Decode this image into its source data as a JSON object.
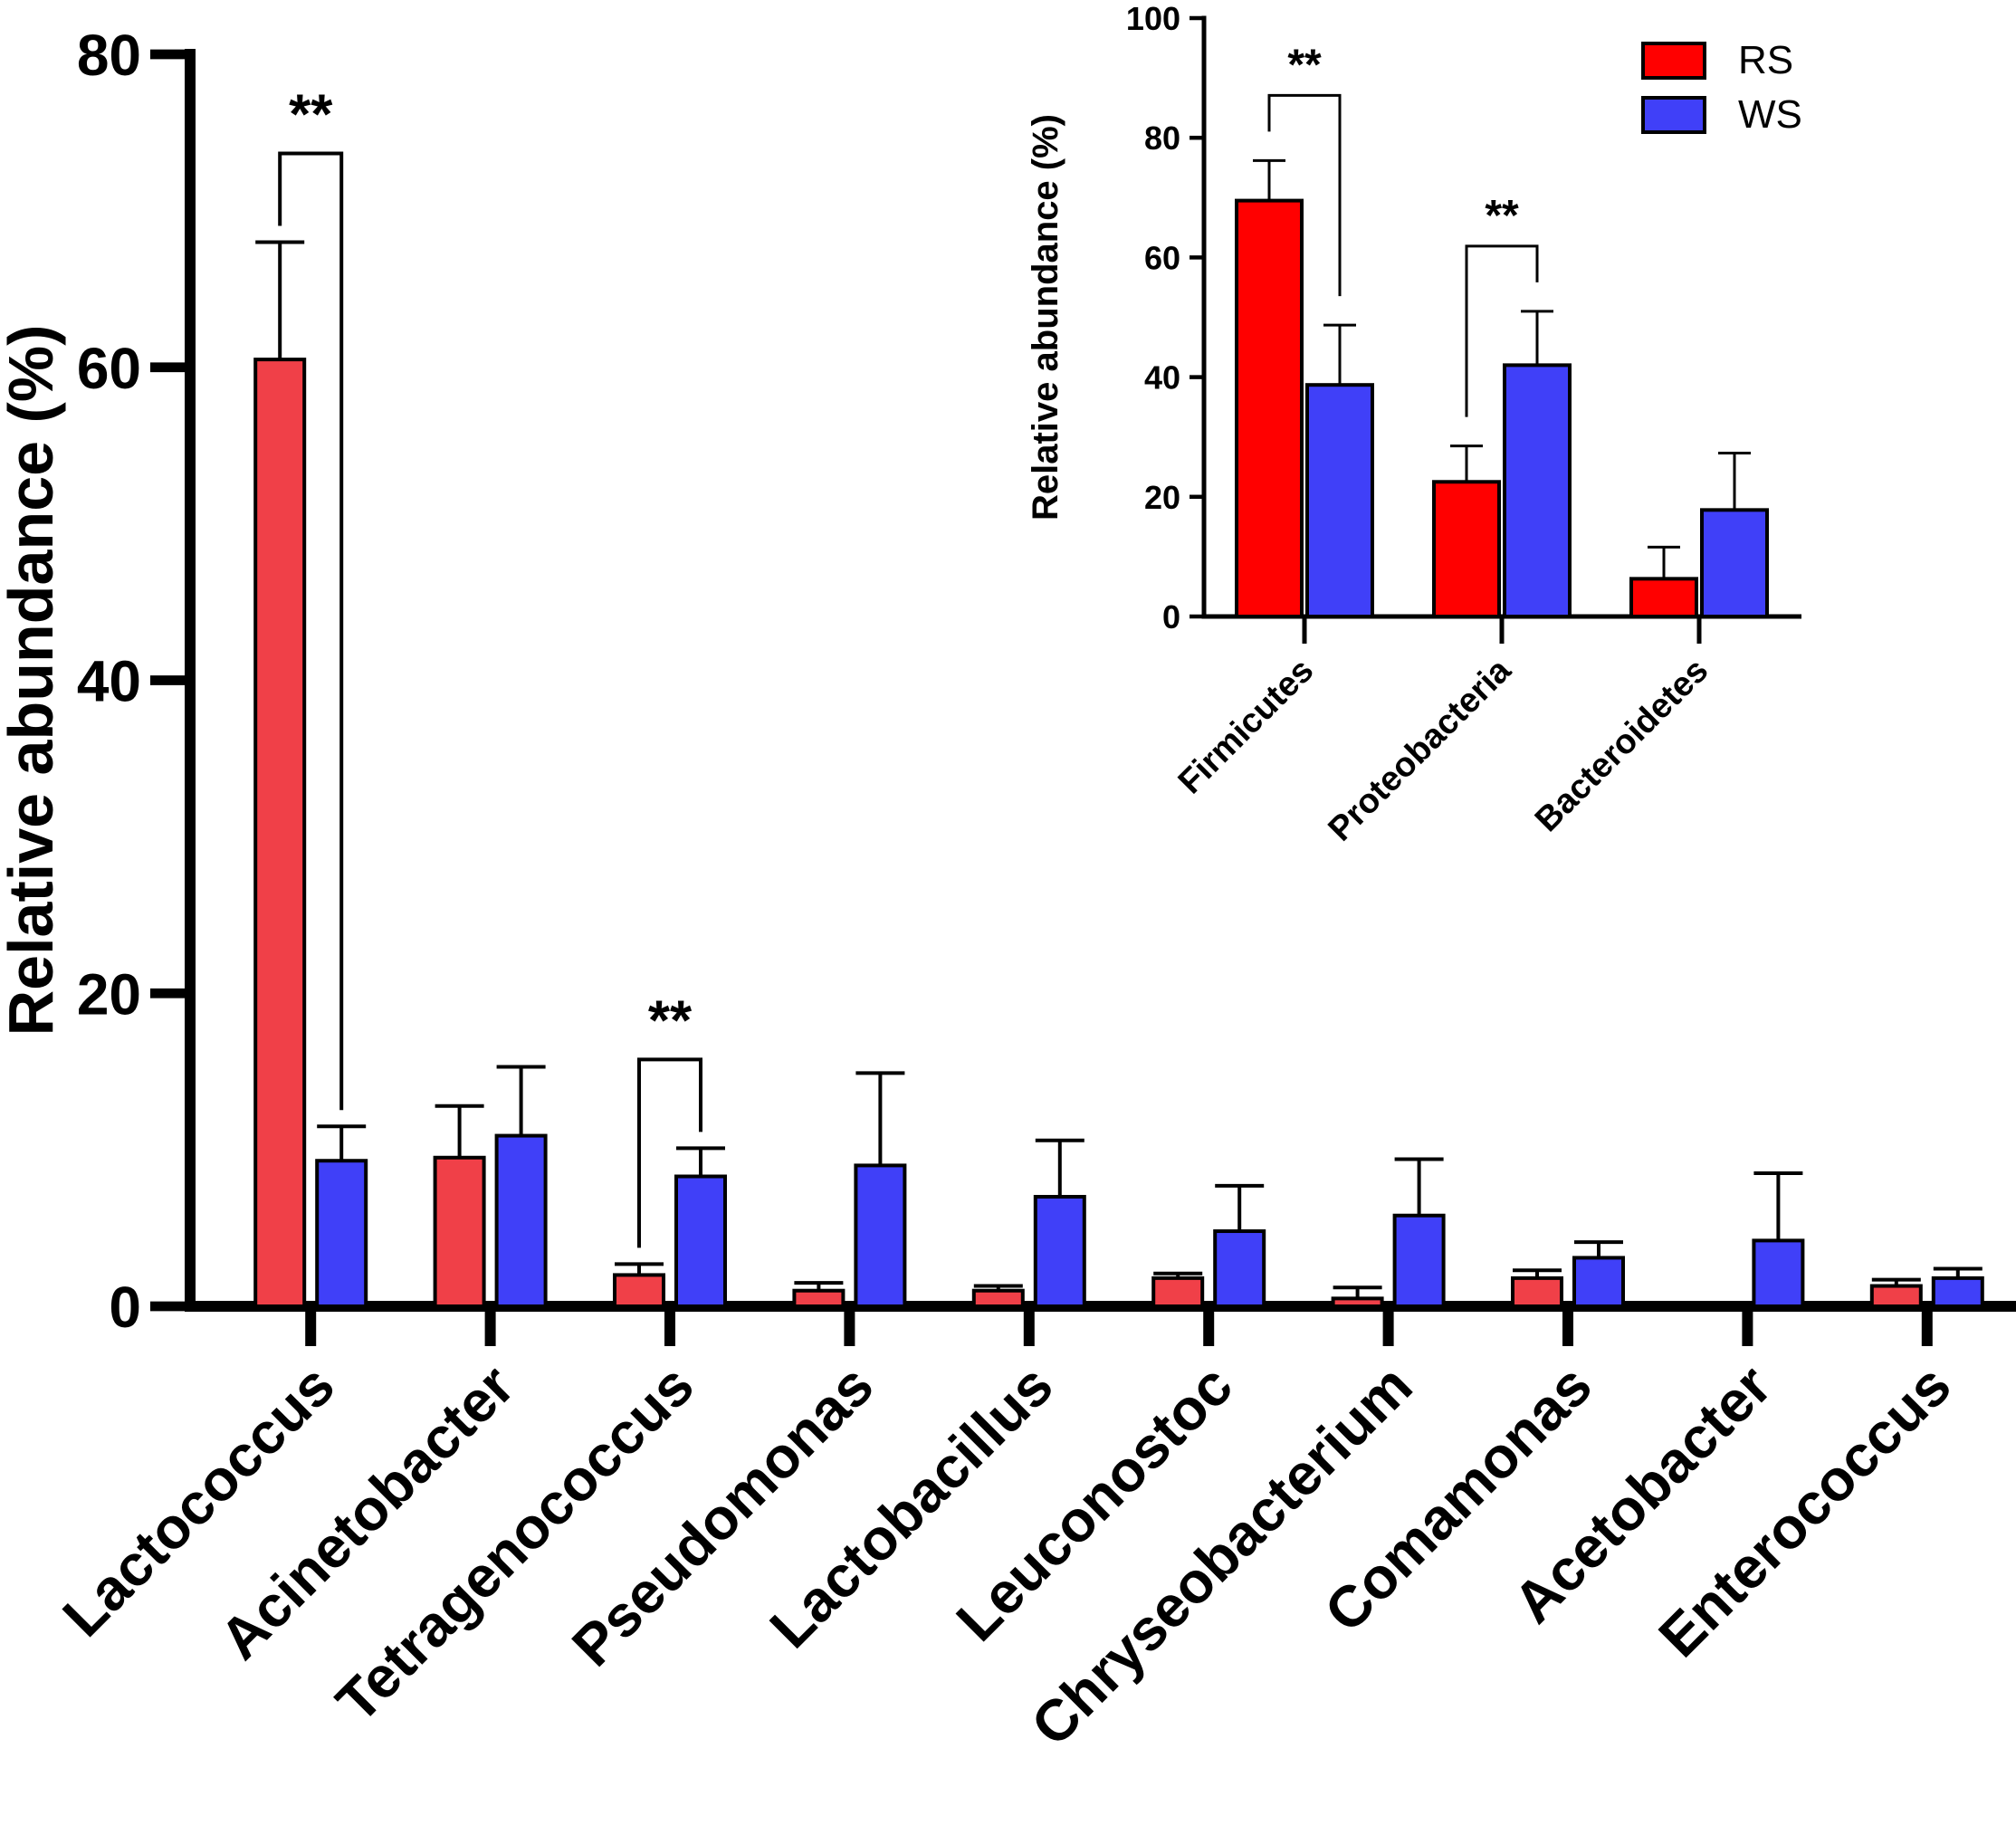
{
  "chart_data": [
    {
      "type": "bar",
      "role": "main",
      "title": "",
      "xlabel": "",
      "ylabel": "Relative abundance (%)",
      "ylim": [
        0,
        80
      ],
      "yticks": [
        "0",
        "20",
        "40",
        "60",
        "80"
      ],
      "grid": false,
      "categories": [
        "Lactococcus",
        "Acinetobacter",
        "Tetragenococcus",
        "Pseudomonas",
        "Lactobacillus",
        "Leuconostoc",
        "Chryseobacterium",
        "Comamonas",
        "Acetobacter",
        "Enterococcus"
      ],
      "series": [
        {
          "name": "RS",
          "color": "#f04048",
          "values": [
            60.5,
            9.5,
            2.0,
            1.0,
            1.0,
            1.8,
            0.5,
            1.8,
            0.1,
            1.3
          ],
          "errors": [
            7.5,
            3.3,
            0.7,
            0.5,
            0.3,
            0.3,
            0.7,
            0.5,
            0.0,
            0.4
          ]
        },
        {
          "name": "WS",
          "color": "#4040f8",
          "values": [
            9.3,
            10.9,
            8.3,
            9.0,
            7.0,
            4.8,
            5.8,
            3.1,
            4.2,
            1.8
          ],
          "errors": [
            2.2,
            4.4,
            1.8,
            5.9,
            3.6,
            2.9,
            3.6,
            1.0,
            4.3,
            0.6
          ]
        }
      ],
      "annotations": [
        {
          "text": "**",
          "category": "Lactococcus"
        },
        {
          "text": "**",
          "category": "Tetragenococcus"
        }
      ]
    },
    {
      "type": "bar",
      "role": "inset",
      "title": "",
      "xlabel": "",
      "ylabel": "Relative abundance (%)",
      "ylim": [
        0,
        100
      ],
      "yticks": [
        "0",
        "20",
        "40",
        "60",
        "80",
        "100"
      ],
      "grid": false,
      "categories": [
        "Firmicutes",
        "Proteobacteria",
        "Bacteroidetes"
      ],
      "series": [
        {
          "name": "RS",
          "color": "#ff0000",
          "values": [
            69.5,
            22.5,
            6.3
          ],
          "errors": [
            6.7,
            6.0,
            5.3
          ]
        },
        {
          "name": "WS",
          "color": "#4040f8",
          "values": [
            38.7,
            42.0,
            17.8
          ],
          "errors": [
            10.0,
            9.0,
            9.5
          ]
        }
      ],
      "annotations": [
        {
          "text": "**",
          "category": "Firmicutes"
        },
        {
          "text": "**",
          "category": "Proteobacteria"
        }
      ],
      "legend": {
        "position": "top-right",
        "entries": [
          "RS",
          "WS"
        ]
      }
    }
  ]
}
